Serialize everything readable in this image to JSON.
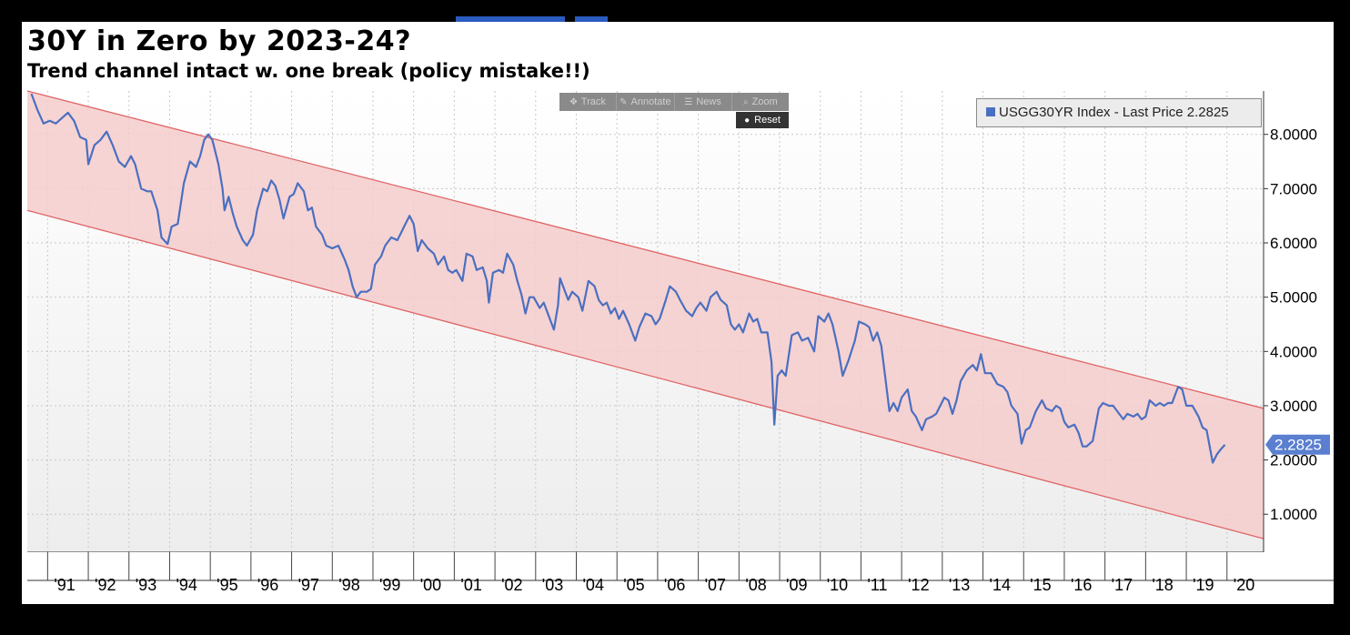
{
  "window": {
    "title": "30Y in Zero by 2023-24?",
    "subtitle": "Trend channel intact w. one break (policy mistake!!)"
  },
  "toolbar": {
    "items": [
      {
        "label": "Track",
        "icon": "crosshair-icon"
      },
      {
        "label": "Annotate",
        "icon": "pencil-icon"
      },
      {
        "label": "News",
        "icon": "newspaper-icon"
      },
      {
        "label": "Zoom",
        "icon": "magnifier-icon"
      }
    ],
    "reset_label": "Reset",
    "reset_icon": "circle-icon"
  },
  "legend": {
    "label": "USGG30YR Index - Last Price 2.2825",
    "color": "#4b6fc0"
  },
  "last_value_tag": "2.2825",
  "colors": {
    "series": "#4b6fc0",
    "channel_fill": "#f5cccc",
    "channel_line": "#e06464",
    "tag_bg": "#5a7fd0"
  },
  "chart_data": {
    "type": "line",
    "title": "30Y in Zero by 2023-24?",
    "subtitle": "Trend channel intact w. one break (policy mistake!!)",
    "ylim": [
      0.3,
      8.8
    ],
    "xlim": [
      1990.5,
      2020.9
    ],
    "y_ticks": [
      "1.0000",
      "2.0000",
      "3.0000",
      "4.0000",
      "5.0000",
      "6.0000",
      "7.0000",
      "8.0000"
    ],
    "y_tick_values": [
      1,
      2,
      3,
      4,
      5,
      6,
      7,
      8
    ],
    "x_ticks": [
      "'91",
      "'92",
      "'93",
      "'94",
      "'95",
      "'96",
      "'97",
      "'98",
      "'99",
      "'00",
      "'01",
      "'02",
      "'03",
      "'04",
      "'05",
      "'06",
      "'07",
      "'08",
      "'09",
      "'10",
      "'11",
      "'12",
      "'13",
      "'14",
      "'15",
      "'16",
      "'17",
      "'18",
      "'19",
      "'20"
    ],
    "x_tick_values": [
      1991,
      1992,
      1993,
      1994,
      1995,
      1996,
      1997,
      1998,
      1999,
      2000,
      2001,
      2002,
      2003,
      2004,
      2005,
      2006,
      2007,
      2008,
      2009,
      2010,
      2011,
      2012,
      2013,
      2014,
      2015,
      2016,
      2017,
      2018,
      2019,
      2020
    ],
    "grid": true,
    "legend": "top-right",
    "channel": {
      "upper": [
        [
          1990.5,
          8.8
        ],
        [
          2020.9,
          2.95
        ]
      ],
      "lower": [
        [
          1990.5,
          6.6
        ],
        [
          2020.9,
          0.55
        ]
      ]
    },
    "series": [
      {
        "name": "USGG30YR Index - Last Price",
        "last_price": 2.2825,
        "points": [
          [
            1990.6,
            8.75
          ],
          [
            1990.75,
            8.45
          ],
          [
            1990.9,
            8.2
          ],
          [
            1991.05,
            8.25
          ],
          [
            1991.2,
            8.2
          ],
          [
            1991.35,
            8.3
          ],
          [
            1991.5,
            8.4
          ],
          [
            1991.65,
            8.25
          ],
          [
            1991.8,
            7.95
          ],
          [
            1991.95,
            7.9
          ],
          [
            1992.0,
            7.45
          ],
          [
            1992.15,
            7.8
          ],
          [
            1992.3,
            7.9
          ],
          [
            1992.45,
            8.05
          ],
          [
            1992.6,
            7.8
          ],
          [
            1992.75,
            7.5
          ],
          [
            1992.9,
            7.4
          ],
          [
            1993.05,
            7.6
          ],
          [
            1993.15,
            7.45
          ],
          [
            1993.3,
            7.0
          ],
          [
            1993.45,
            6.95
          ],
          [
            1993.55,
            6.95
          ],
          [
            1993.7,
            6.6
          ],
          [
            1993.8,
            6.1
          ],
          [
            1993.95,
            5.98
          ],
          [
            1994.05,
            6.3
          ],
          [
            1994.2,
            6.35
          ],
          [
            1994.35,
            7.1
          ],
          [
            1994.5,
            7.5
          ],
          [
            1994.65,
            7.4
          ],
          [
            1994.75,
            7.6
          ],
          [
            1994.85,
            7.9
          ],
          [
            1994.95,
            8.0
          ],
          [
            1995.05,
            7.9
          ],
          [
            1995.2,
            7.45
          ],
          [
            1995.3,
            7.0
          ],
          [
            1995.35,
            6.6
          ],
          [
            1995.45,
            6.85
          ],
          [
            1995.55,
            6.55
          ],
          [
            1995.65,
            6.3
          ],
          [
            1995.8,
            6.05
          ],
          [
            1995.9,
            5.95
          ],
          [
            1996.05,
            6.15
          ],
          [
            1996.15,
            6.6
          ],
          [
            1996.3,
            7.0
          ],
          [
            1996.4,
            6.95
          ],
          [
            1996.5,
            7.15
          ],
          [
            1996.6,
            7.05
          ],
          [
            1996.7,
            6.8
          ],
          [
            1996.8,
            6.45
          ],
          [
            1996.95,
            6.85
          ],
          [
            1997.05,
            6.9
          ],
          [
            1997.15,
            7.1
          ],
          [
            1997.3,
            6.95
          ],
          [
            1997.4,
            6.6
          ],
          [
            1997.5,
            6.65
          ],
          [
            1997.6,
            6.3
          ],
          [
            1997.75,
            6.15
          ],
          [
            1997.85,
            5.95
          ],
          [
            1998.0,
            5.9
          ],
          [
            1998.15,
            5.95
          ],
          [
            1998.3,
            5.7
          ],
          [
            1998.4,
            5.5
          ],
          [
            1998.5,
            5.2
          ],
          [
            1998.6,
            5.0
          ],
          [
            1998.7,
            5.1
          ],
          [
            1998.85,
            5.1
          ],
          [
            1998.95,
            5.15
          ],
          [
            1999.05,
            5.6
          ],
          [
            1999.2,
            5.75
          ],
          [
            1999.3,
            5.95
          ],
          [
            1999.45,
            6.1
          ],
          [
            1999.6,
            6.05
          ],
          [
            1999.7,
            6.2
          ],
          [
            1999.8,
            6.35
          ],
          [
            1999.9,
            6.5
          ],
          [
            2000.0,
            6.35
          ],
          [
            2000.1,
            5.85
          ],
          [
            2000.2,
            6.05
          ],
          [
            2000.35,
            5.9
          ],
          [
            2000.5,
            5.8
          ],
          [
            2000.6,
            5.6
          ],
          [
            2000.75,
            5.75
          ],
          [
            2000.85,
            5.5
          ],
          [
            2000.95,
            5.45
          ],
          [
            2001.05,
            5.5
          ],
          [
            2001.2,
            5.3
          ],
          [
            2001.3,
            5.8
          ],
          [
            2001.45,
            5.75
          ],
          [
            2001.55,
            5.5
          ],
          [
            2001.7,
            5.55
          ],
          [
            2001.8,
            5.3
          ],
          [
            2001.85,
            4.9
          ],
          [
            2001.95,
            5.45
          ],
          [
            2002.1,
            5.5
          ],
          [
            2002.2,
            5.45
          ],
          [
            2002.3,
            5.8
          ],
          [
            2002.45,
            5.6
          ],
          [
            2002.55,
            5.3
          ],
          [
            2002.65,
            5.05
          ],
          [
            2002.75,
            4.7
          ],
          [
            2002.85,
            5.0
          ],
          [
            2002.95,
            5.0
          ],
          [
            2003.1,
            4.8
          ],
          [
            2003.2,
            4.9
          ],
          [
            2003.3,
            4.7
          ],
          [
            2003.45,
            4.4
          ],
          [
            2003.55,
            4.85
          ],
          [
            2003.6,
            5.35
          ],
          [
            2003.7,
            5.15
          ],
          [
            2003.8,
            4.95
          ],
          [
            2003.9,
            5.1
          ],
          [
            2004.05,
            5.0
          ],
          [
            2004.15,
            4.75
          ],
          [
            2004.3,
            5.3
          ],
          [
            2004.45,
            5.2
          ],
          [
            2004.55,
            4.95
          ],
          [
            2004.65,
            4.85
          ],
          [
            2004.75,
            4.9
          ],
          [
            2004.85,
            4.7
          ],
          [
            2004.95,
            4.8
          ],
          [
            2005.05,
            4.6
          ],
          [
            2005.15,
            4.75
          ],
          [
            2005.3,
            4.5
          ],
          [
            2005.45,
            4.2
          ],
          [
            2005.55,
            4.45
          ],
          [
            2005.7,
            4.7
          ],
          [
            2005.85,
            4.65
          ],
          [
            2005.95,
            4.5
          ],
          [
            2006.05,
            4.6
          ],
          [
            2006.2,
            4.95
          ],
          [
            2006.3,
            5.2
          ],
          [
            2006.45,
            5.1
          ],
          [
            2006.55,
            4.95
          ],
          [
            2006.7,
            4.75
          ],
          [
            2006.85,
            4.65
          ],
          [
            2006.95,
            4.8
          ],
          [
            2007.05,
            4.9
          ],
          [
            2007.2,
            4.75
          ],
          [
            2007.3,
            5.0
          ],
          [
            2007.45,
            5.1
          ],
          [
            2007.55,
            4.95
          ],
          [
            2007.7,
            4.85
          ],
          [
            2007.8,
            4.5
          ],
          [
            2007.9,
            4.4
          ],
          [
            2008.0,
            4.5
          ],
          [
            2008.1,
            4.35
          ],
          [
            2008.25,
            4.7
          ],
          [
            2008.35,
            4.55
          ],
          [
            2008.45,
            4.6
          ],
          [
            2008.55,
            4.35
          ],
          [
            2008.7,
            4.35
          ],
          [
            2008.8,
            3.8
          ],
          [
            2008.87,
            2.65
          ],
          [
            2008.95,
            3.55
          ],
          [
            2009.05,
            3.65
          ],
          [
            2009.15,
            3.55
          ],
          [
            2009.3,
            4.3
          ],
          [
            2009.45,
            4.35
          ],
          [
            2009.55,
            4.2
          ],
          [
            2009.7,
            4.25
          ],
          [
            2009.85,
            4.0
          ],
          [
            2009.95,
            4.65
          ],
          [
            2010.1,
            4.55
          ],
          [
            2010.2,
            4.7
          ],
          [
            2010.3,
            4.5
          ],
          [
            2010.45,
            4.0
          ],
          [
            2010.55,
            3.55
          ],
          [
            2010.7,
            3.85
          ],
          [
            2010.85,
            4.2
          ],
          [
            2010.95,
            4.55
          ],
          [
            2011.1,
            4.5
          ],
          [
            2011.2,
            4.45
          ],
          [
            2011.3,
            4.2
          ],
          [
            2011.4,
            4.35
          ],
          [
            2011.5,
            4.1
          ],
          [
            2011.6,
            3.5
          ],
          [
            2011.7,
            2.9
          ],
          [
            2011.8,
            3.05
          ],
          [
            2011.9,
            2.9
          ],
          [
            2012.0,
            3.15
          ],
          [
            2012.15,
            3.3
          ],
          [
            2012.25,
            2.9
          ],
          [
            2012.35,
            2.8
          ],
          [
            2012.5,
            2.55
          ],
          [
            2012.6,
            2.75
          ],
          [
            2012.75,
            2.8
          ],
          [
            2012.85,
            2.85
          ],
          [
            2012.95,
            3.0
          ],
          [
            2013.05,
            3.15
          ],
          [
            2013.15,
            3.1
          ],
          [
            2013.25,
            2.85
          ],
          [
            2013.35,
            3.1
          ],
          [
            2013.45,
            3.45
          ],
          [
            2013.6,
            3.65
          ],
          [
            2013.75,
            3.75
          ],
          [
            2013.85,
            3.65
          ],
          [
            2013.95,
            3.95
          ],
          [
            2014.05,
            3.6
          ],
          [
            2014.2,
            3.6
          ],
          [
            2014.35,
            3.4
          ],
          [
            2014.5,
            3.35
          ],
          [
            2014.6,
            3.25
          ],
          [
            2014.7,
            3.0
          ],
          [
            2014.85,
            2.85
          ],
          [
            2014.95,
            2.3
          ],
          [
            2015.05,
            2.55
          ],
          [
            2015.15,
            2.6
          ],
          [
            2015.3,
            2.9
          ],
          [
            2015.45,
            3.1
          ],
          [
            2015.55,
            2.95
          ],
          [
            2015.7,
            2.9
          ],
          [
            2015.8,
            3.0
          ],
          [
            2015.9,
            2.95
          ],
          [
            2016.0,
            2.7
          ],
          [
            2016.1,
            2.6
          ],
          [
            2016.25,
            2.65
          ],
          [
            2016.35,
            2.5
          ],
          [
            2016.45,
            2.25
          ],
          [
            2016.55,
            2.25
          ],
          [
            2016.7,
            2.35
          ],
          [
            2016.85,
            2.95
          ],
          [
            2016.95,
            3.05
          ],
          [
            2017.1,
            3.0
          ],
          [
            2017.2,
            3.0
          ],
          [
            2017.35,
            2.85
          ],
          [
            2017.45,
            2.75
          ],
          [
            2017.55,
            2.85
          ],
          [
            2017.7,
            2.8
          ],
          [
            2017.8,
            2.85
          ],
          [
            2017.9,
            2.75
          ],
          [
            2018.0,
            2.8
          ],
          [
            2018.1,
            3.1
          ],
          [
            2018.25,
            3.0
          ],
          [
            2018.35,
            3.05
          ],
          [
            2018.45,
            3.0
          ],
          [
            2018.55,
            3.05
          ],
          [
            2018.65,
            3.05
          ],
          [
            2018.8,
            3.35
          ],
          [
            2018.9,
            3.3
          ],
          [
            2019.0,
            3.0
          ],
          [
            2019.15,
            3.0
          ],
          [
            2019.3,
            2.8
          ],
          [
            2019.4,
            2.6
          ],
          [
            2019.5,
            2.55
          ],
          [
            2019.65,
            1.95
          ],
          [
            2019.75,
            2.1
          ],
          [
            2019.85,
            2.2
          ],
          [
            2019.95,
            2.28
          ]
        ]
      }
    ]
  }
}
